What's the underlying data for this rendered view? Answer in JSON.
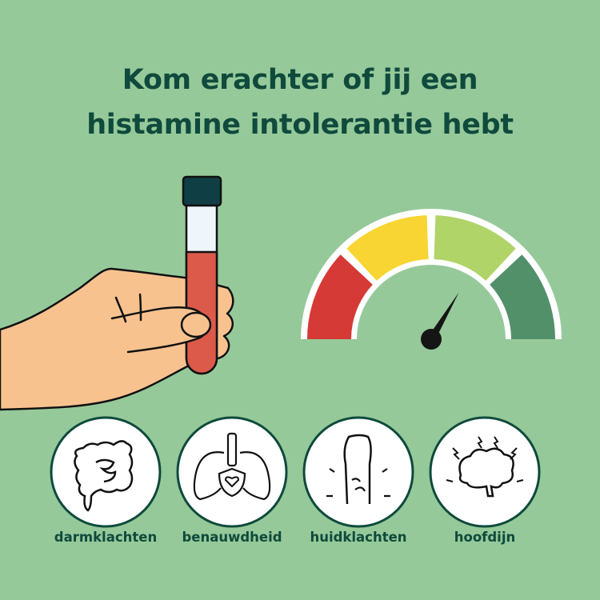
{
  "title": {
    "line1": "Kom erachter of jij een",
    "line2": "histamine intolerantie hebt"
  },
  "colors": {
    "background": "#96c99a",
    "text": "#0f4a3c",
    "gauge": [
      "#d63a36",
      "#f8d532",
      "#b0d468",
      "#52906a"
    ],
    "blood": "#dc5a4a",
    "cap": "#0f3f44",
    "skin": "#f8c28f"
  },
  "gauge": {
    "segments": 4,
    "needle_level": 0.67
  },
  "symptoms": [
    {
      "label": "darmklachten",
      "icon": "intestine-icon"
    },
    {
      "label": "benauwdheid",
      "icon": "lungs-icon"
    },
    {
      "label": "huidklachten",
      "icon": "arm-skin-icon"
    },
    {
      "label": "hoofdijn",
      "icon": "brain-headache-icon"
    }
  ]
}
